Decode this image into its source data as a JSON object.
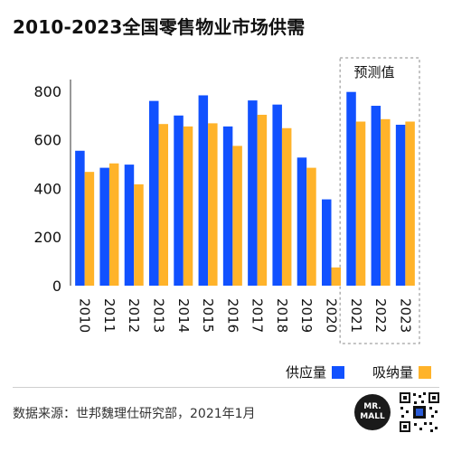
{
  "title": "2010-2023全国零售物业市场供需",
  "forecast_label": "预测值",
  "source": "数据来源：世邦魏理仕研究部，2021年1月",
  "logo": {
    "line1": "MR.",
    "line2": "MALL"
  },
  "colors": {
    "supply": "#1151FF",
    "absorption": "#FFB32A",
    "axis": "#333333",
    "forecast_box": "#888888"
  },
  "chart_data": {
    "type": "bar",
    "title": "2010-2023全国零售物业市场供需",
    "categories": [
      "2010",
      "2011",
      "2012",
      "2013",
      "2014",
      "2015",
      "2016",
      "2017",
      "2018",
      "2019",
      "2020",
      "2021",
      "2022",
      "2023"
    ],
    "series": [
      {
        "name": "供应量",
        "values": [
          555,
          485,
          498,
          760,
          700,
          783,
          655,
          762,
          745,
          527,
          355,
          797,
          740,
          662
        ]
      },
      {
        "name": "吸纳量",
        "values": [
          468,
          503,
          417,
          665,
          655,
          668,
          575,
          703,
          648,
          485,
          75,
          675,
          685,
          675
        ]
      }
    ],
    "yticks": [
      0,
      200,
      400,
      600,
      800
    ],
    "ylim": [
      0,
      900
    ],
    "forecast_categories": [
      "2021",
      "2022",
      "2023"
    ],
    "legend_position": "bottom-right",
    "grid": false
  }
}
